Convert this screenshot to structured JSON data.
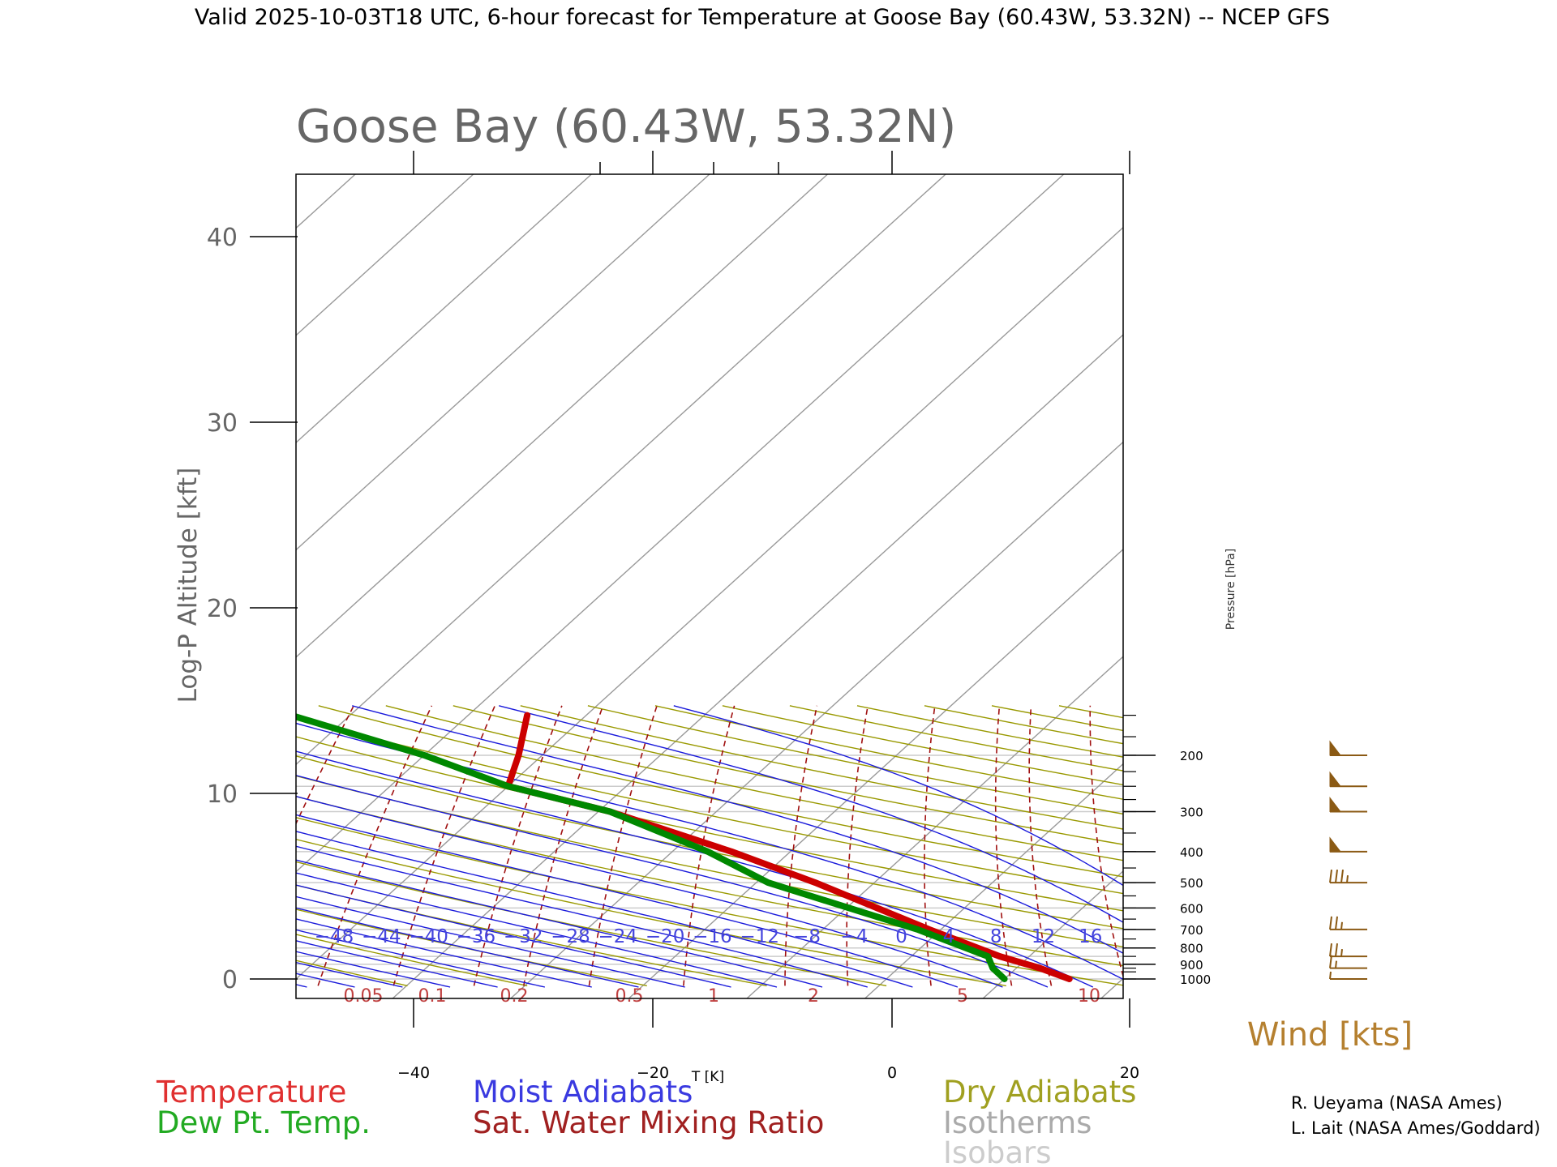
{
  "header": "Valid 2025-10-03T18 UTC, 6-hour forecast for Temperature at Goose Bay (60.43W, 53.32N) -- NCEP GFS",
  "chart_data": {
    "type": "line",
    "title": "Goose Bay (60.43W, 53.32N)",
    "xlabel": "T [K]",
    "ylabel": "Log-P Altitude [kft]",
    "y2label": "Pressure [hPa]",
    "xlim": [
      -50,
      20
    ],
    "ylim": [
      0,
      43
    ],
    "x_ticks": [
      -40,
      -20,
      0,
      20
    ],
    "x_tick_labels": [
      "−40",
      "−20",
      "0",
      "20"
    ],
    "y_ticks": [
      0,
      10,
      20,
      30,
      40
    ],
    "y_tick_labels": [
      "0",
      "10",
      "20",
      "30",
      "40"
    ],
    "pressure_ticks": [
      1000,
      900,
      800,
      700,
      600,
      500,
      400,
      300,
      200
    ],
    "pressure_tick_labels": [
      "1000",
      "900",
      "800",
      "700",
      "600",
      "500",
      "400",
      "300",
      "200"
    ],
    "moist_adiabat_labels": [
      "−48",
      "−44",
      "−40",
      "−36",
      "−32",
      "−28",
      "−24",
      "−20",
      "−16",
      "−12",
      "−8",
      "−4",
      "0",
      "4",
      "8",
      "12",
      "16"
    ],
    "mixing_ratio_labels": [
      "0.05",
      "0.1",
      "0.2",
      "0.5",
      "1",
      "2",
      "5",
      "10"
    ],
    "series": [
      {
        "name": "Temperature",
        "color": "#cc0000",
        "points": [
          {
            "p": 1000,
            "t": 15.5
          },
          {
            "p": 925,
            "t": 12.0
          },
          {
            "p": 850,
            "t": 7.5
          },
          {
            "p": 700,
            "t": -1.0
          },
          {
            "p": 500,
            "t": -15.0
          },
          {
            "p": 400,
            "t": -25.0
          },
          {
            "p": 300,
            "t": -39.0
          },
          {
            "p": 250,
            "t": -50.0
          },
          {
            "p": 200,
            "t": -52.0
          },
          {
            "p": 150,
            "t": -55.0
          }
        ]
      },
      {
        "name": "Dew Pt. Temp.",
        "color": "#008800",
        "points": [
          {
            "p": 1000,
            "t": 10.0
          },
          {
            "p": 925,
            "t": 8.0
          },
          {
            "p": 850,
            "t": 6.5
          },
          {
            "p": 700,
            "t": -2.0
          },
          {
            "p": 500,
            "t": -19.0
          },
          {
            "p": 400,
            "t": -27.0
          },
          {
            "p": 300,
            "t": -39.0
          },
          {
            "p": 250,
            "t": -50.0
          },
          {
            "p": 200,
            "t": -60.0
          },
          {
            "p": 150,
            "t": -75.0
          }
        ]
      }
    ],
    "wind": {
      "title": "Wind [kts]",
      "barbs": [
        {
          "p": 1000,
          "kts": 5
        },
        {
          "p": 925,
          "kts": 15
        },
        {
          "p": 850,
          "kts": 25
        },
        {
          "p": 700,
          "kts": 25
        },
        {
          "p": 500,
          "kts": 35
        },
        {
          "p": 400,
          "kts": 50
        },
        {
          "p": 300,
          "kts": 50
        },
        {
          "p": 250,
          "kts": 50
        },
        {
          "p": 200,
          "kts": 50
        }
      ],
      "color": "#8b5a14"
    },
    "legend": [
      {
        "label": "Temperature",
        "color": "#e03030"
      },
      {
        "label": "Dew Pt. Temp.",
        "color": "#22aa22"
      },
      {
        "label": "Moist Adiabats",
        "color": "#3a3ae0"
      },
      {
        "label": "Sat. Water Mixing Ratio",
        "color": "#a02020"
      },
      {
        "label": "Dry Adiabats",
        "color": "#a0a020"
      },
      {
        "label": "Isotherms",
        "color": "#aaaaaa"
      },
      {
        "label": "Isobars",
        "color": "#cccccc"
      }
    ]
  },
  "credits": [
    "R. Ueyama (NASA Ames)",
    "L. Lait (NASA Ames/Goddard)"
  ]
}
